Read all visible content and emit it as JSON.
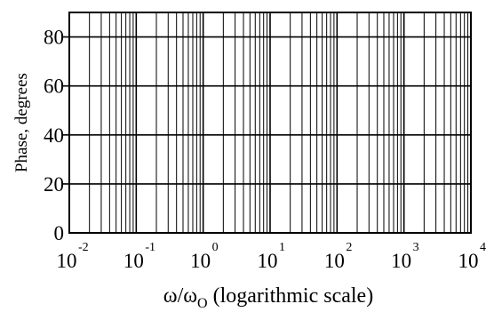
{
  "chart_data": {
    "type": "line",
    "title": "",
    "x_scale": "log",
    "xlim": [
      0.01,
      10000
    ],
    "ylim": [
      0,
      90
    ],
    "x_tick_labels": [
      {
        "base": "10",
        "exp": "-2",
        "value": 0.01
      },
      {
        "base": "10",
        "exp": "-1",
        "value": 0.1
      },
      {
        "base": "10",
        "exp": "0",
        "value": 1
      },
      {
        "base": "10",
        "exp": "1",
        "value": 10
      },
      {
        "base": "10",
        "exp": "2",
        "value": 100
      },
      {
        "base": "10",
        "exp": "3",
        "value": 1000
      },
      {
        "base": "10",
        "exp": "4",
        "value": 10000
      }
    ],
    "y_ticks": [
      0,
      20,
      40,
      60,
      80
    ],
    "ylabel": "Phase, degrees",
    "xlabel": {
      "main": "ω/ω",
      "sub": "O",
      "tail": " (logarithmic scale)"
    },
    "grid": true,
    "series": []
  }
}
